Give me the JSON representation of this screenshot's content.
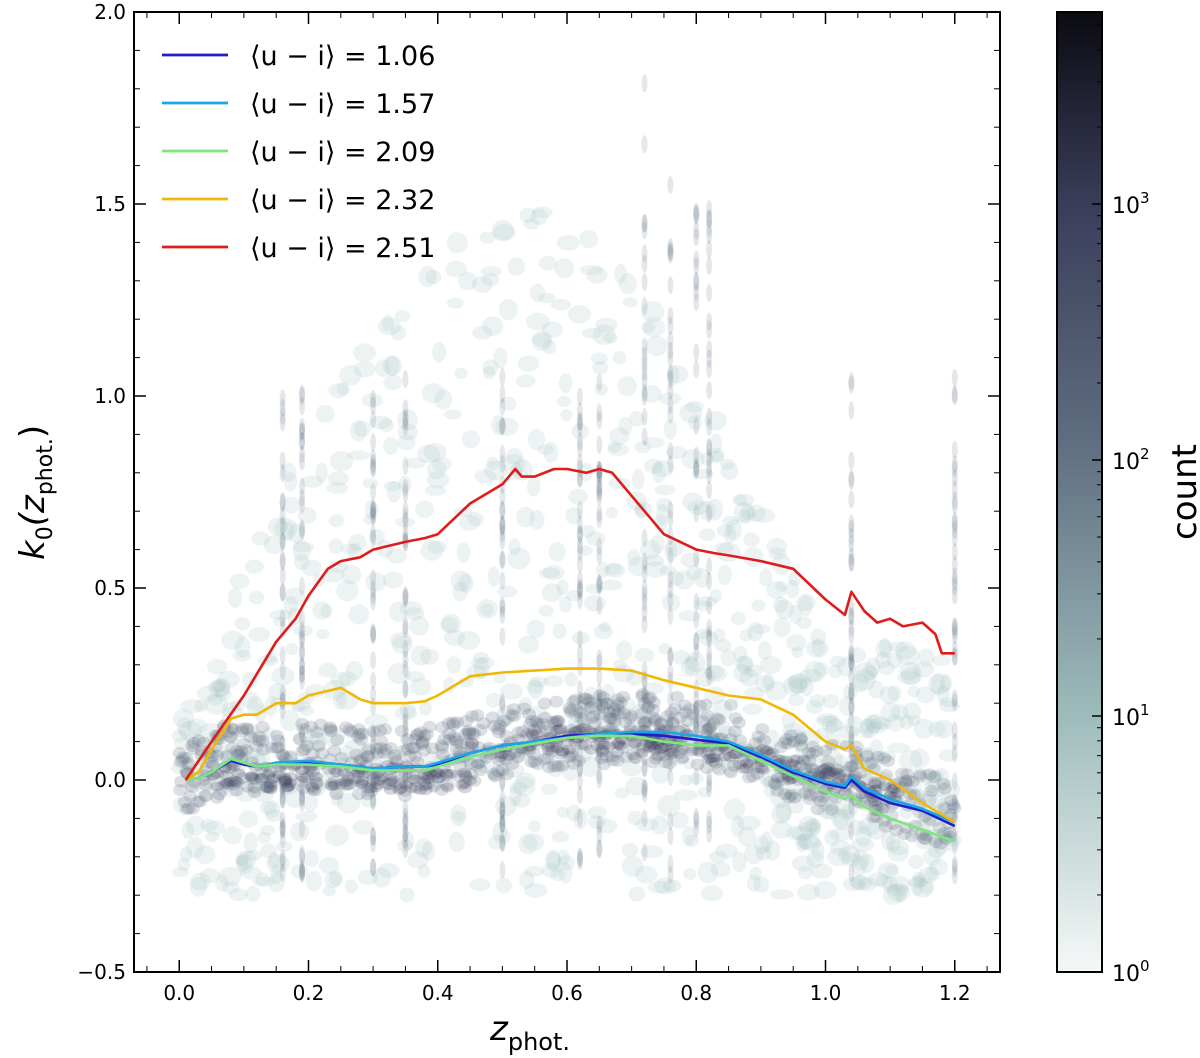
{
  "chart_data": {
    "type": "line",
    "background": "hexbin density (log color scale)",
    "xlabel": "z",
    "xlabel_sub": "phot.",
    "ylabel_main": "k",
    "ylabel_sub": "0",
    "ylabel_arg": "(z",
    "ylabel_arg_sub": "phot.",
    "ylabel_close": ")",
    "xlim": [
      -0.07,
      1.27
    ],
    "ylim": [
      -0.5,
      2.0
    ],
    "xticks": [
      0.0,
      0.2,
      0.4,
      0.6,
      0.8,
      1.0,
      1.2
    ],
    "xtick_labels": [
      "0.0",
      "0.2",
      "0.4",
      "0.6",
      "0.8",
      "1.0",
      "1.2"
    ],
    "yticks": [
      -0.5,
      0.0,
      0.5,
      1.0,
      1.5,
      2.0
    ],
    "ytick_labels": [
      "−0.5",
      "0.0",
      "0.5",
      "1.0",
      "1.5",
      "2.0"
    ],
    "colorbar": {
      "label": "count",
      "scale": "log",
      "tick_labels": [
        {
          "base": "10",
          "exp": "0"
        },
        {
          "base": "10",
          "exp": "1"
        },
        {
          "base": "10",
          "exp": "2"
        },
        {
          "base": "10",
          "exp": "3"
        }
      ],
      "tick_exponents": [
        0,
        1,
        2,
        3
      ],
      "max_exponent": 3.75,
      "colors": [
        "#f6f8f8",
        "#9dbbbb",
        "#5f6e80",
        "#3a3d5a",
        "#0b0b12"
      ]
    },
    "legend_position": "top-left",
    "series": [
      {
        "name": "⟨u − i⟩ = 1.06",
        "color": "#1f1fc8",
        "x": [
          0.01,
          0.03,
          0.05,
          0.08,
          0.1,
          0.12,
          0.15,
          0.2,
          0.25,
          0.3,
          0.35,
          0.38,
          0.4,
          0.45,
          0.5,
          0.55,
          0.6,
          0.65,
          0.7,
          0.75,
          0.8,
          0.85,
          0.9,
          0.95,
          1.0,
          1.03,
          1.04,
          1.06,
          1.1,
          1.15,
          1.2
        ],
        "y": [
          0.0,
          0.005,
          0.02,
          0.05,
          0.04,
          0.035,
          0.04,
          0.045,
          0.04,
          0.03,
          0.035,
          0.035,
          0.04,
          0.07,
          0.09,
          0.1,
          0.115,
          0.12,
          0.12,
          0.115,
          0.105,
          0.095,
          0.06,
          0.02,
          -0.01,
          -0.02,
          0.0,
          -0.03,
          -0.06,
          -0.08,
          -0.12
        ]
      },
      {
        "name": "⟨u − i⟩ = 1.57",
        "color": "#1aa6e8",
        "x": [
          0.01,
          0.03,
          0.05,
          0.08,
          0.1,
          0.12,
          0.15,
          0.2,
          0.25,
          0.3,
          0.35,
          0.38,
          0.4,
          0.45,
          0.5,
          0.55,
          0.6,
          0.65,
          0.7,
          0.75,
          0.8,
          0.85,
          0.9,
          0.95,
          1.0,
          1.03,
          1.04,
          1.06,
          1.1,
          1.15,
          1.2
        ],
        "y": [
          0.0,
          0.005,
          0.02,
          0.055,
          0.045,
          0.035,
          0.045,
          0.05,
          0.04,
          0.03,
          0.035,
          0.035,
          0.045,
          0.07,
          0.09,
          0.1,
          0.11,
          0.12,
          0.125,
          0.125,
          0.115,
          0.1,
          0.065,
          0.025,
          -0.005,
          -0.015,
          0.01,
          -0.02,
          -0.05,
          -0.075,
          -0.11
        ]
      },
      {
        "name": "⟨u − i⟩ = 2.09",
        "color": "#7be87b",
        "x": [
          0.01,
          0.03,
          0.05,
          0.08,
          0.1,
          0.12,
          0.15,
          0.2,
          0.25,
          0.3,
          0.35,
          0.38,
          0.4,
          0.45,
          0.5,
          0.55,
          0.6,
          0.65,
          0.7,
          0.75,
          0.8,
          0.85,
          0.9,
          0.95,
          1.0,
          1.03,
          1.04,
          1.06,
          1.1,
          1.15,
          1.2
        ],
        "y": [
          0.0,
          0.005,
          0.02,
          0.055,
          0.045,
          0.035,
          0.04,
          0.04,
          0.035,
          0.025,
          0.025,
          0.025,
          0.035,
          0.06,
          0.08,
          0.095,
          0.11,
          0.115,
          0.115,
          0.1,
          0.09,
          0.09,
          0.05,
          0.01,
          -0.03,
          -0.05,
          -0.04,
          -0.07,
          -0.1,
          -0.13,
          -0.16
        ]
      },
      {
        "name": "⟨u − i⟩ = 2.32",
        "color": "#f2b705",
        "x": [
          0.01,
          0.03,
          0.05,
          0.07,
          0.08,
          0.1,
          0.12,
          0.15,
          0.16,
          0.18,
          0.2,
          0.25,
          0.28,
          0.3,
          0.35,
          0.38,
          0.4,
          0.45,
          0.5,
          0.55,
          0.6,
          0.65,
          0.7,
          0.75,
          0.8,
          0.85,
          0.9,
          0.95,
          1.0,
          1.03,
          1.04,
          1.06,
          1.1,
          1.15,
          1.2
        ],
        "y": [
          0.0,
          0.02,
          0.08,
          0.13,
          0.16,
          0.17,
          0.17,
          0.2,
          0.2,
          0.2,
          0.22,
          0.24,
          0.21,
          0.2,
          0.2,
          0.205,
          0.22,
          0.27,
          0.28,
          0.285,
          0.29,
          0.29,
          0.285,
          0.26,
          0.24,
          0.22,
          0.21,
          0.17,
          0.1,
          0.08,
          0.09,
          0.03,
          0.0,
          -0.06,
          -0.11
        ]
      },
      {
        "name": "⟨u − i⟩ = 2.51",
        "color": "#e01b1b",
        "x": [
          0.01,
          0.05,
          0.1,
          0.15,
          0.18,
          0.2,
          0.23,
          0.25,
          0.28,
          0.3,
          0.35,
          0.38,
          0.4,
          0.45,
          0.5,
          0.52,
          0.53,
          0.55,
          0.58,
          0.6,
          0.63,
          0.65,
          0.67,
          0.7,
          0.75,
          0.8,
          0.83,
          0.85,
          0.9,
          0.95,
          1.0,
          1.03,
          1.04,
          1.06,
          1.08,
          1.1,
          1.12,
          1.15,
          1.17,
          1.18,
          1.2
        ],
        "y": [
          0.0,
          0.1,
          0.22,
          0.36,
          0.42,
          0.48,
          0.55,
          0.57,
          0.58,
          0.6,
          0.62,
          0.63,
          0.64,
          0.72,
          0.77,
          0.81,
          0.79,
          0.79,
          0.81,
          0.81,
          0.8,
          0.81,
          0.8,
          0.74,
          0.64,
          0.6,
          0.59,
          0.585,
          0.57,
          0.55,
          0.47,
          0.43,
          0.49,
          0.44,
          0.41,
          0.42,
          0.4,
          0.41,
          0.38,
          0.33,
          0.33
        ]
      }
    ]
  }
}
